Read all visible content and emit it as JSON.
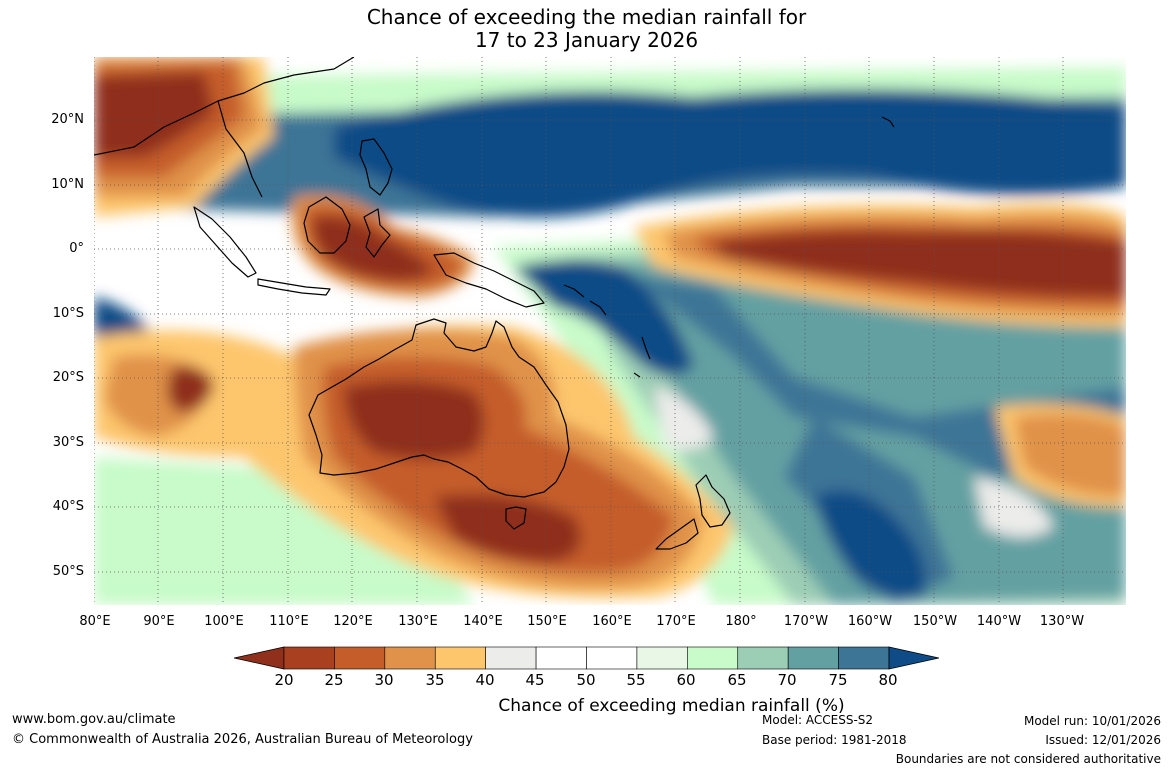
{
  "title": {
    "line1": "Chance of exceeding the median rainfall for",
    "line2": "17 to 23 January 2026"
  },
  "map": {
    "lat_labels": [
      "20°N",
      "10°N",
      "0°",
      "10°S",
      "20°S",
      "30°S",
      "40°S",
      "50°S"
    ],
    "lon_labels": [
      "80°E",
      "90°E",
      "100°E",
      "110°E",
      "120°E",
      "130°E",
      "140°E",
      "150°E",
      "160°E",
      "170°E",
      "180°",
      "170°W",
      "160°W",
      "150°W",
      "140°W",
      "130°W"
    ],
    "colors": {
      "very_low": "#8f2f1c",
      "low": "#a9401f",
      "mid_low": "#c55d2a",
      "below": "#e0924a",
      "slightly_below": "#fdc66d",
      "neutral": "#ececea",
      "white": "#ffffff",
      "slightly_above": "#e9f7e7",
      "above": "#c8fbc9",
      "mid_high": "#9ccdb5",
      "high": "#63a0a2",
      "very_high": "#3c7596",
      "extreme": "#0f4b86"
    }
  },
  "colorbar": {
    "ticks": [
      "20",
      "25",
      "30",
      "35",
      "40",
      "45",
      "50",
      "55",
      "60",
      "65",
      "70",
      "75",
      "80"
    ],
    "colors": [
      "#a9401f",
      "#c55d2a",
      "#e0924a",
      "#fdc66d",
      "#ececea",
      "#ffffff",
      "#ffffff",
      "#e9f7e7",
      "#c8fbc9",
      "#9ccdb5",
      "#63a0a2",
      "#3c7596"
    ],
    "low_extend_color": "#8f2f1c",
    "high_extend_color": "#0f4b86",
    "label": "Chance of exceeding median rainfall (%)"
  },
  "footer": {
    "website": "www.bom.gov.au/climate",
    "copyright": "© Commonwealth of Australia 2026, Australian Bureau of Meteorology",
    "model": "Model: ACCESS-S2",
    "base_period": "Base period: 1981-2018",
    "model_run": "Model run: 10/01/2026",
    "issued": "Issued: 12/01/2026",
    "disclaimer": "Boundaries are not considered authoritative"
  }
}
